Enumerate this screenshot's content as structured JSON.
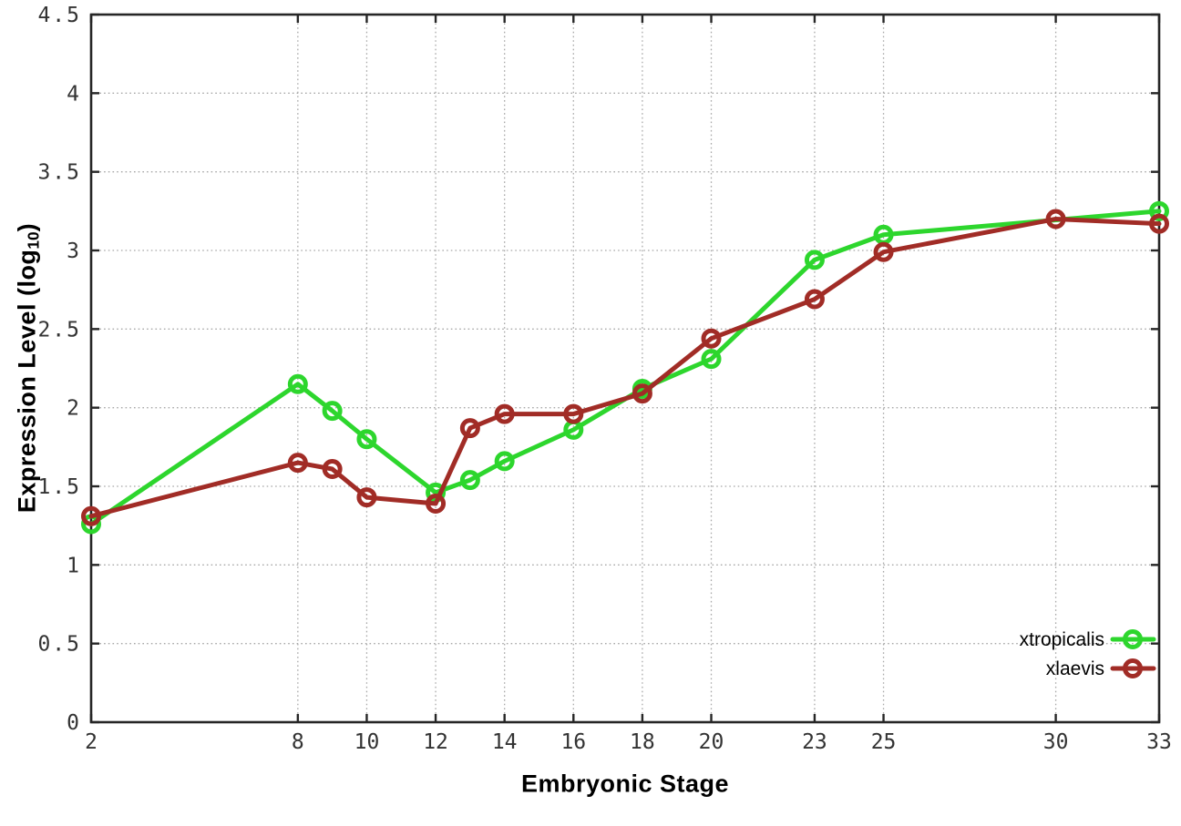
{
  "figure": {
    "background": "#ffffff",
    "xlabel": "Embryonic Stage",
    "ylabel_prefix": "Expression Level (log",
    "ylabel_subscript": "10",
    "ylabel_suffix": ")"
  },
  "chart_data": {
    "type": "line",
    "title": "",
    "xlabel": "Embryonic Stage",
    "ylabel": "Expression Level (log10)",
    "xlim": [
      2,
      33
    ],
    "ylim": [
      0,
      4.5
    ],
    "x_ticks": [
      2,
      8,
      10,
      12,
      14,
      16,
      18,
      20,
      23,
      25,
      30,
      33
    ],
    "y_ticks": [
      0,
      0.5,
      1,
      1.5,
      2,
      2.5,
      3,
      3.5,
      4,
      4.5
    ],
    "grid": true,
    "grid_style": "dotted",
    "legend_position": "bottom-right",
    "colors": {
      "grid": "#a8a8a8",
      "border": "#262626",
      "tick": "#262626",
      "tick_label": "#333333"
    },
    "series": [
      {
        "name": "xtropicalis",
        "color": "#2dd62d",
        "marker": "open-circle",
        "x": [
          2,
          8,
          9,
          10,
          12,
          13,
          14,
          16,
          18,
          20,
          23,
          25,
          33
        ],
        "y": [
          1.26,
          2.15,
          1.98,
          1.8,
          1.46,
          1.54,
          1.66,
          1.86,
          2.12,
          2.31,
          2.94,
          3.1,
          3.25
        ]
      },
      {
        "name": "xlaevis",
        "color": "#a12c26",
        "marker": "open-circle",
        "x": [
          2,
          8,
          9,
          10,
          12,
          13,
          14,
          16,
          18,
          20,
          23,
          25,
          30,
          33
        ],
        "y": [
          1.31,
          1.65,
          1.61,
          1.43,
          1.39,
          1.87,
          1.96,
          1.96,
          2.09,
          2.44,
          2.69,
          2.99,
          3.2,
          3.17
        ]
      }
    ]
  },
  "legend": {
    "items": [
      {
        "label": "xtropicalis"
      },
      {
        "label": "xlaevis"
      }
    ]
  }
}
